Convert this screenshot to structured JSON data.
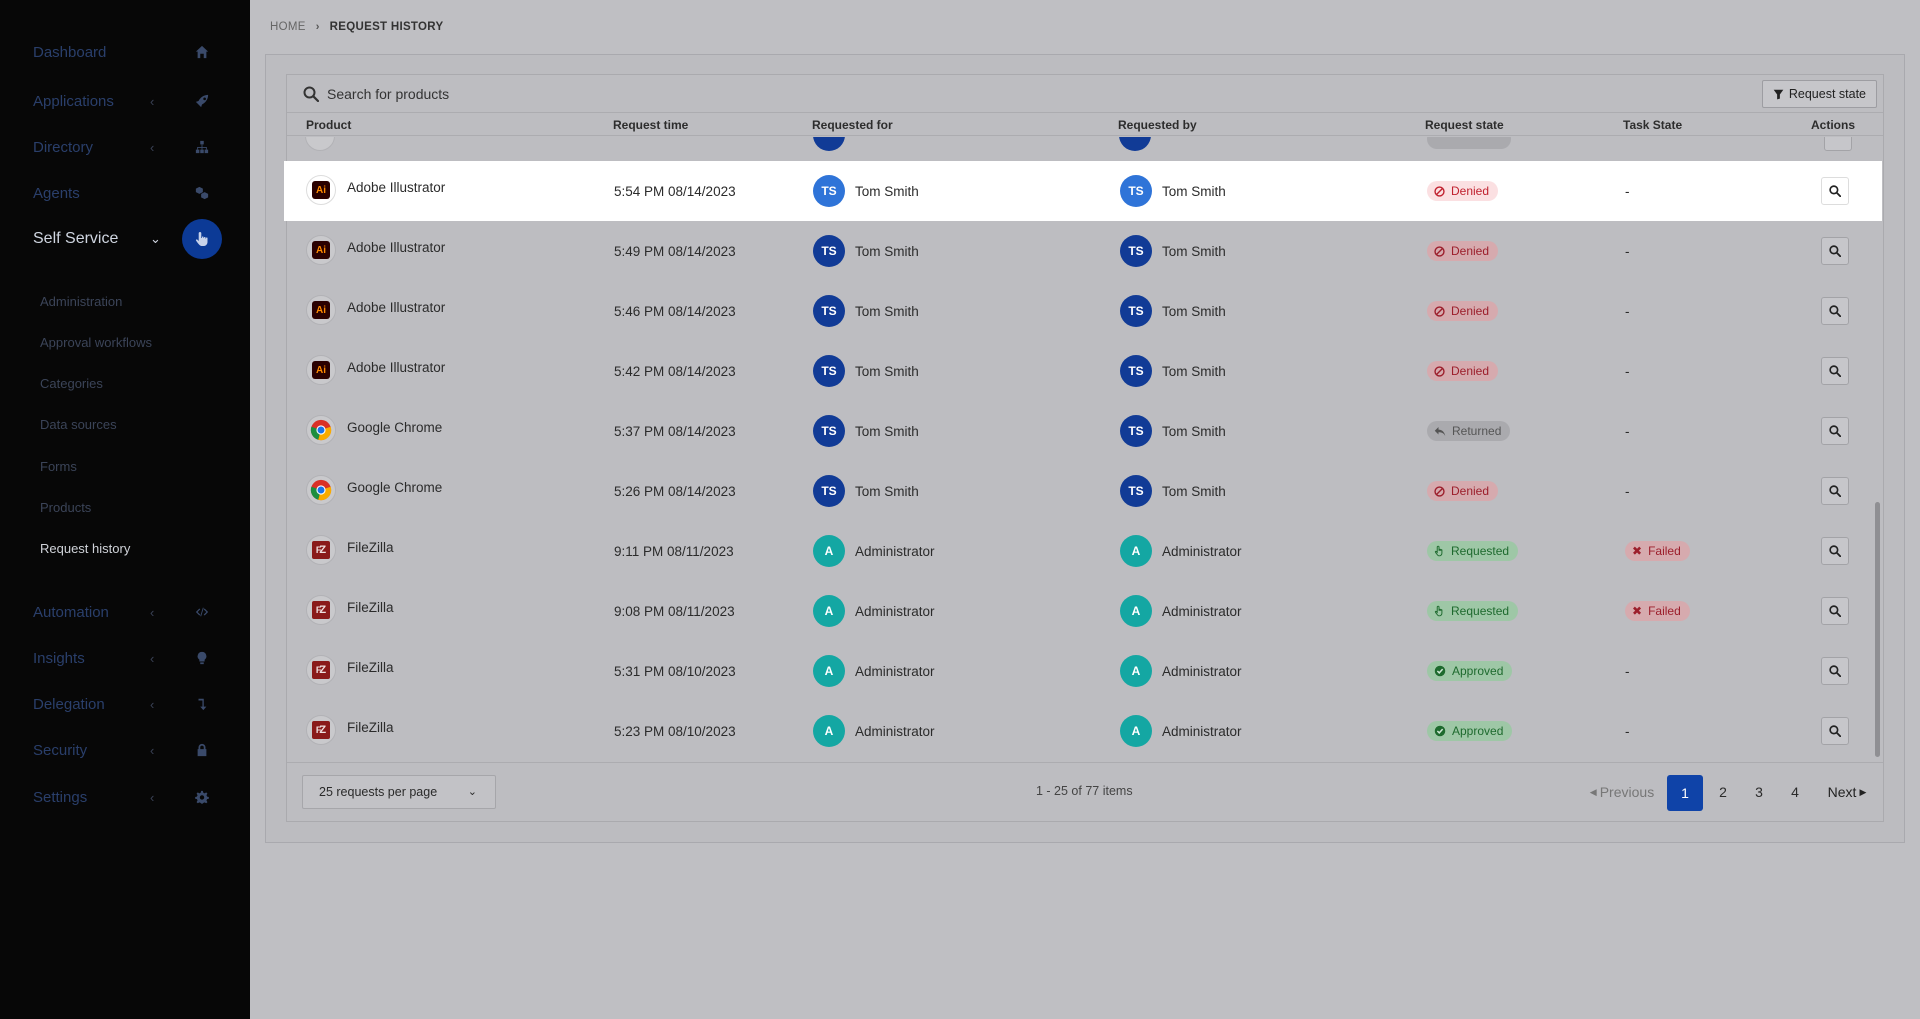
{
  "sidebar": {
    "items": [
      {
        "label": "Dashboard",
        "icon": "home-icon"
      },
      {
        "label": "Applications",
        "icon": "rocket-icon"
      },
      {
        "label": "Directory",
        "icon": "sitemap-icon"
      },
      {
        "label": "Agents",
        "icon": "cubes-icon"
      },
      {
        "label": "Self Service",
        "icon": "hand-pointer-icon"
      },
      {
        "label": "Automation",
        "icon": "code-icon"
      },
      {
        "label": "Insights",
        "icon": "lightbulb-icon"
      },
      {
        "label": "Delegation",
        "icon": "level-down-icon"
      },
      {
        "label": "Security",
        "icon": "lock-icon"
      },
      {
        "label": "Settings",
        "icon": "gear-icon"
      }
    ],
    "sub_items": [
      "Administration",
      "Approval workflows",
      "Categories",
      "Data sources",
      "Forms",
      "Products",
      "Request history"
    ]
  },
  "breadcrumb": {
    "home": "HOME",
    "current": "REQUEST HISTORY"
  },
  "search": {
    "placeholder": "Search for products"
  },
  "filter_label": "Request state",
  "columns": [
    "Product",
    "Request time",
    "Requested for",
    "Requested by",
    "Request state",
    "Task State",
    "Actions"
  ],
  "rows": [
    {
      "product": "Adobe Illustrator",
      "logo": "Ai",
      "time": "5:54 PM 08/14/2023",
      "for_initials": "TS",
      "for": "Tom Smith",
      "by_initials": "TS",
      "by": "Tom Smith",
      "state": "Denied",
      "task": "-"
    },
    {
      "product": "Adobe Illustrator",
      "logo": "Ai",
      "time": "5:49 PM 08/14/2023",
      "for_initials": "TS",
      "for": "Tom Smith",
      "by_initials": "TS",
      "by": "Tom Smith",
      "state": "Denied",
      "task": "-"
    },
    {
      "product": "Adobe Illustrator",
      "logo": "Ai",
      "time": "5:46 PM 08/14/2023",
      "for_initials": "TS",
      "for": "Tom Smith",
      "by_initials": "TS",
      "by": "Tom Smith",
      "state": "Denied",
      "task": "-"
    },
    {
      "product": "Adobe Illustrator",
      "logo": "Ai",
      "time": "5:42 PM 08/14/2023",
      "for_initials": "TS",
      "for": "Tom Smith",
      "by_initials": "TS",
      "by": "Tom Smith",
      "state": "Denied",
      "task": "-"
    },
    {
      "product": "Google Chrome",
      "logo": "",
      "time": "5:37 PM 08/14/2023",
      "for_initials": "TS",
      "for": "Tom Smith",
      "by_initials": "TS",
      "by": "Tom Smith",
      "state": "Returned",
      "task": "-"
    },
    {
      "product": "Google Chrome",
      "logo": "",
      "time": "5:26 PM 08/14/2023",
      "for_initials": "TS",
      "for": "Tom Smith",
      "by_initials": "TS",
      "by": "Tom Smith",
      "state": "Denied",
      "task": "-"
    },
    {
      "product": "FileZilla",
      "logo": "Z",
      "time": "9:11 PM 08/11/2023",
      "for_initials": "A",
      "for": "Administrator",
      "by_initials": "A",
      "by": "Administrator",
      "state": "Requested",
      "task": "Failed"
    },
    {
      "product": "FileZilla",
      "logo": "Z",
      "time": "9:08 PM 08/11/2023",
      "for_initials": "A",
      "for": "Administrator",
      "by_initials": "A",
      "by": "Administrator",
      "state": "Requested",
      "task": "Failed"
    },
    {
      "product": "FileZilla",
      "logo": "Z",
      "time": "5:31 PM 08/10/2023",
      "for_initials": "A",
      "for": "Administrator",
      "by_initials": "A",
      "by": "Administrator",
      "state": "Approved",
      "task": "-"
    },
    {
      "product": "FileZilla",
      "logo": "Z",
      "time": "5:23 PM 08/10/2023",
      "for_initials": "A",
      "for": "Administrator",
      "by_initials": "A",
      "by": "Administrator",
      "state": "Approved",
      "task": "-"
    }
  ],
  "pagination": {
    "per_page": "25 requests per page",
    "count": "1 - 25 of 77 items",
    "previous": "Previous",
    "next": "Next",
    "pages": [
      "1",
      "2",
      "3",
      "4"
    ]
  },
  "colors": {
    "accent": "#0f43a8",
    "sidebar_bg": "#070707",
    "denied": "#c0212f",
    "approved": "#1e6a2e"
  }
}
